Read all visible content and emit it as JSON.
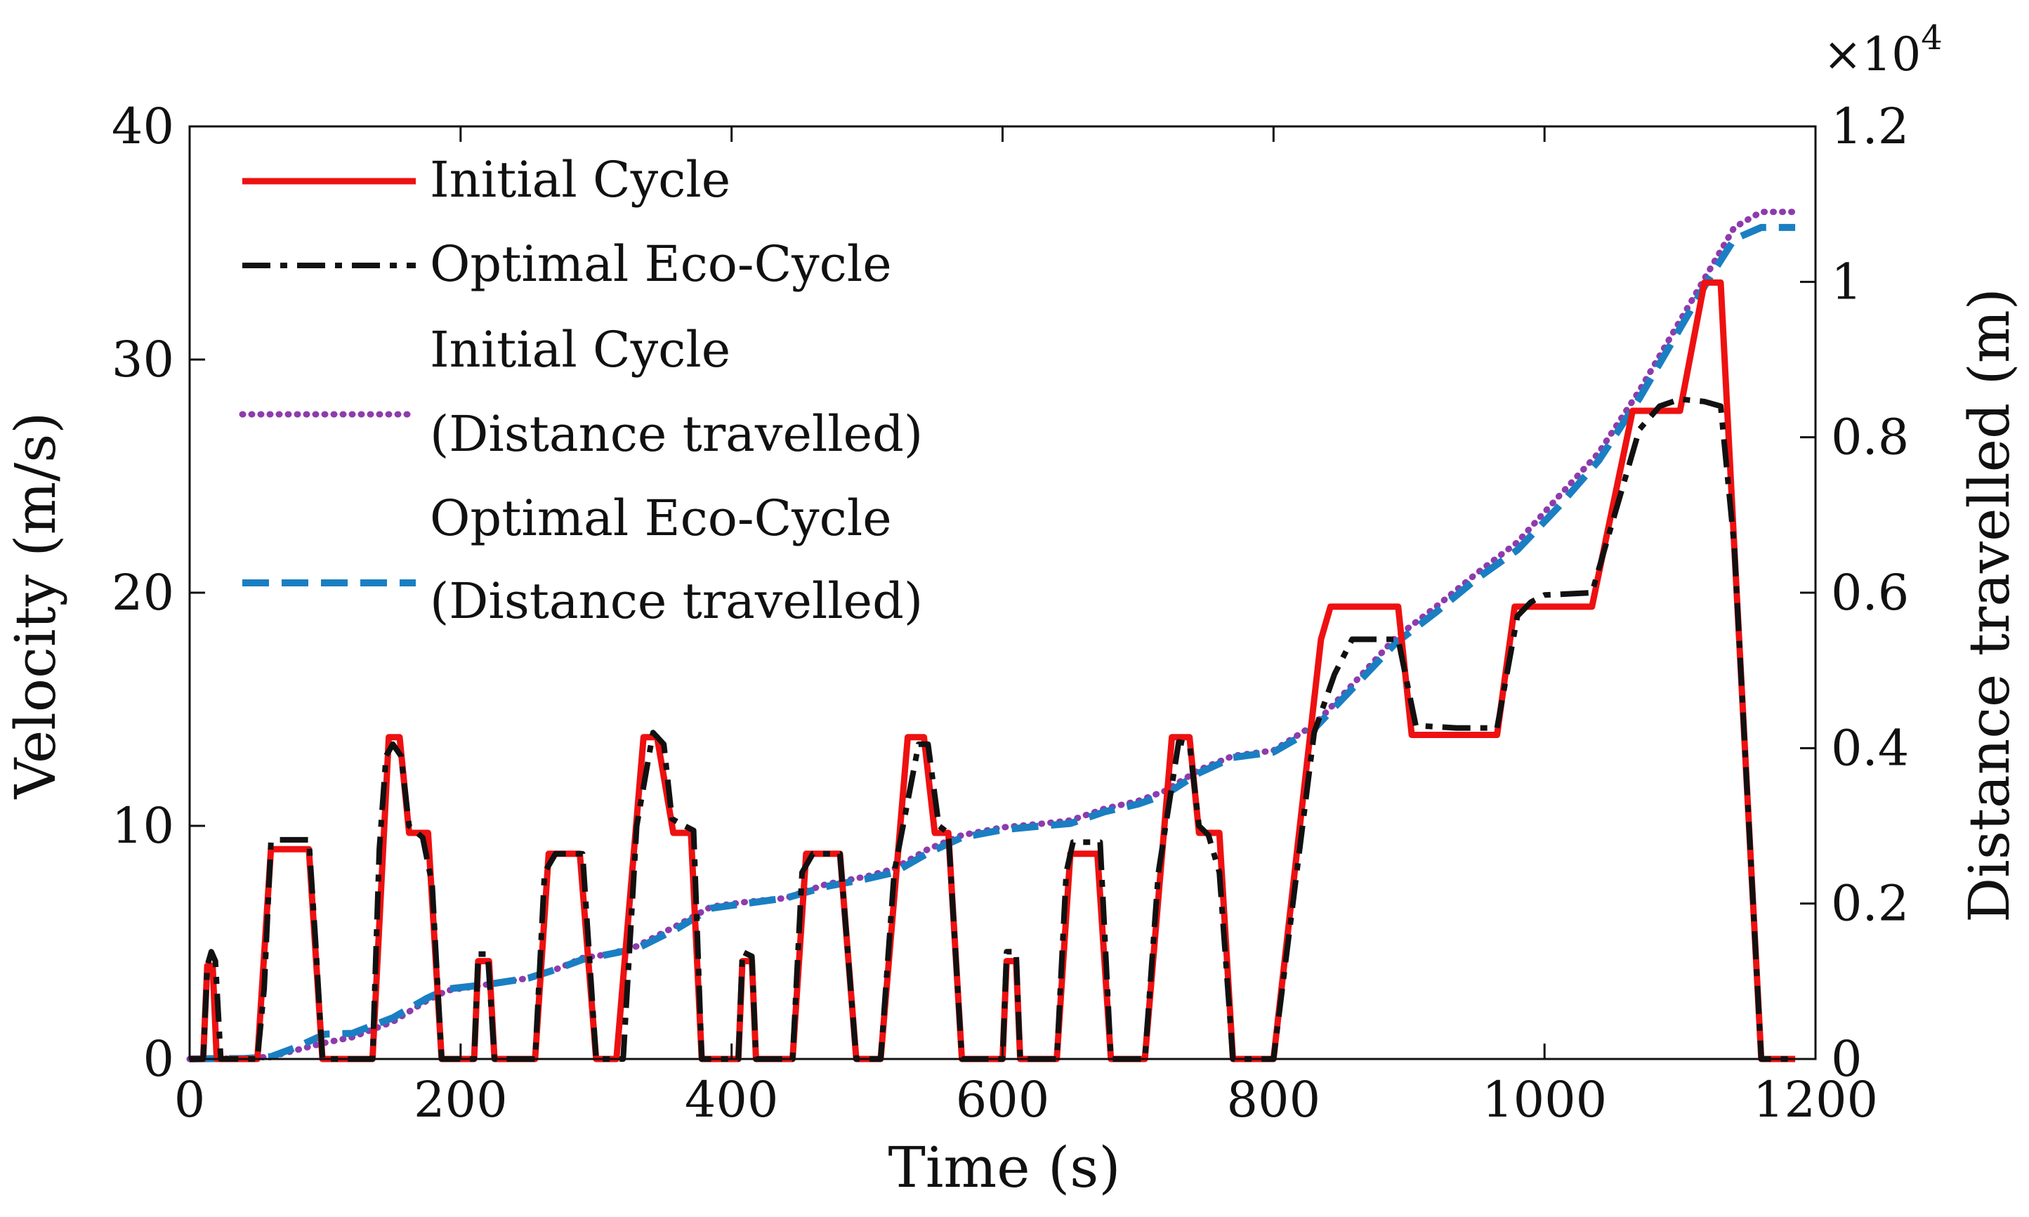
{
  "chart_data": {
    "type": "line",
    "xlabel": "Time (s)",
    "ylabel_left": "Velocity (m/s)",
    "ylabel_right": "Distance travelled (m)",
    "right_axis_multiplier": "×10^4",
    "xlim": [
      0,
      1200
    ],
    "ylim_left": [
      0,
      40
    ],
    "ylim_right": [
      0,
      1.2
    ],
    "x_ticks": [
      "0",
      "200",
      "400",
      "600",
      "800",
      "1000",
      "1200"
    ],
    "y_ticks_left": [
      "0",
      "10",
      "20",
      "30",
      "40"
    ],
    "y_ticks_right": [
      "0",
      "0.2",
      "0.4",
      "0.6",
      "0.8",
      "1",
      "1.2"
    ],
    "grid": false,
    "legend_position": "top-left",
    "legend": [
      {
        "lines": [
          "Initial Cycle"
        ],
        "series": "initial_velocity"
      },
      {
        "lines": [
          "Optimal Eco-Cycle"
        ],
        "series": "optimal_velocity"
      },
      {
        "lines": [
          "Initial Cycle",
          "(Distance travelled)"
        ],
        "series": "initial_distance"
      },
      {
        "lines": [
          "Optimal Eco-Cycle",
          "(Distance travelled)"
        ],
        "series": "optimal_distance"
      }
    ],
    "series": [
      {
        "id": "initial_velocity",
        "axis": "left",
        "color": "#ee1111",
        "style": "solid",
        "points": [
          [
            0,
            0
          ],
          [
            10,
            0
          ],
          [
            13,
            4
          ],
          [
            17,
            4
          ],
          [
            20,
            0
          ],
          [
            30,
            0
          ],
          [
            50,
            0
          ],
          [
            60,
            9
          ],
          [
            88,
            9
          ],
          [
            98,
            0
          ],
          [
            120,
            0
          ],
          [
            135,
            0
          ],
          [
            147,
            13.8
          ],
          [
            155,
            13.8
          ],
          [
            162,
            9.7
          ],
          [
            176,
            9.7
          ],
          [
            186,
            0
          ],
          [
            196,
            0
          ],
          [
            210,
            0
          ],
          [
            213,
            4.2
          ],
          [
            221,
            4.2
          ],
          [
            225,
            0
          ],
          [
            245,
            0
          ],
          [
            255,
            0
          ],
          [
            265,
            8.8
          ],
          [
            288,
            8.8
          ],
          [
            300,
            0
          ],
          [
            310,
            0
          ],
          [
            315,
            0
          ],
          [
            335,
            13.8
          ],
          [
            345,
            13.8
          ],
          [
            357,
            9.7
          ],
          [
            370,
            9.7
          ],
          [
            378,
            0
          ],
          [
            390,
            0
          ],
          [
            405,
            0
          ],
          [
            408,
            4.2
          ],
          [
            415,
            4.2
          ],
          [
            418,
            0
          ],
          [
            430,
            0
          ],
          [
            445,
            0
          ],
          [
            455,
            8.8
          ],
          [
            480,
            8.8
          ],
          [
            492,
            0
          ],
          [
            505,
            0
          ],
          [
            510,
            0
          ],
          [
            530,
            13.8
          ],
          [
            542,
            13.8
          ],
          [
            550,
            9.7
          ],
          [
            560,
            9.7
          ],
          [
            570,
            0
          ],
          [
            585,
            0
          ],
          [
            600,
            0
          ],
          [
            603,
            4.2
          ],
          [
            610,
            4.2
          ],
          [
            613,
            0
          ],
          [
            625,
            0
          ],
          [
            640,
            0
          ],
          [
            650,
            8.8
          ],
          [
            670,
            8.8
          ],
          [
            680,
            0
          ],
          [
            695,
            0
          ],
          [
            705,
            0
          ],
          [
            725,
            13.8
          ],
          [
            738,
            13.8
          ],
          [
            745,
            9.7
          ],
          [
            760,
            9.7
          ],
          [
            770,
            0
          ],
          [
            780,
            0
          ],
          [
            800,
            0
          ],
          [
            835,
            18
          ],
          [
            842,
            19.4
          ],
          [
            892,
            19.4
          ],
          [
            902,
            13.9
          ],
          [
            965,
            13.9
          ],
          [
            978,
            19.4
          ],
          [
            1035,
            19.4
          ],
          [
            1065,
            27.8
          ],
          [
            1100,
            27.8
          ],
          [
            1118,
            33.3
          ],
          [
            1130,
            33.3
          ],
          [
            1140,
            22
          ],
          [
            1160,
            0
          ],
          [
            1185,
            0
          ]
        ]
      },
      {
        "id": "optimal_velocity",
        "axis": "left",
        "color": "#111111",
        "style": "dashdot",
        "points": [
          [
            0,
            0
          ],
          [
            10,
            0
          ],
          [
            13,
            4
          ],
          [
            16,
            4.6
          ],
          [
            19,
            4.2
          ],
          [
            23,
            0
          ],
          [
            30,
            0
          ],
          [
            50,
            0
          ],
          [
            55,
            3
          ],
          [
            60,
            9.3
          ],
          [
            65,
            9.4
          ],
          [
            88,
            9.4
          ],
          [
            93,
            5
          ],
          [
            98,
            0
          ],
          [
            120,
            0
          ],
          [
            135,
            0
          ],
          [
            140,
            9
          ],
          [
            145,
            13
          ],
          [
            150,
            13.5
          ],
          [
            156,
            13
          ],
          [
            162,
            10
          ],
          [
            172,
            9.5
          ],
          [
            179,
            7.5
          ],
          [
            186,
            0
          ],
          [
            196,
            0
          ],
          [
            210,
            0
          ],
          [
            213,
            4.5
          ],
          [
            220,
            4.5
          ],
          [
            225,
            0
          ],
          [
            245,
            0
          ],
          [
            255,
            0
          ],
          [
            262,
            8
          ],
          [
            270,
            8.8
          ],
          [
            290,
            8.8
          ],
          [
            300,
            0
          ],
          [
            315,
            0
          ],
          [
            320,
            0
          ],
          [
            330,
            10
          ],
          [
            342,
            14
          ],
          [
            350,
            13.5
          ],
          [
            356,
            10.3
          ],
          [
            362,
            10.1
          ],
          [
            372,
            9.8
          ],
          [
            378,
            0
          ],
          [
            390,
            0
          ],
          [
            405,
            0
          ],
          [
            408,
            4.6
          ],
          [
            415,
            4.4
          ],
          [
            418,
            0
          ],
          [
            430,
            0
          ],
          [
            445,
            0
          ],
          [
            452,
            8
          ],
          [
            460,
            8.8
          ],
          [
            480,
            8.8
          ],
          [
            492,
            0
          ],
          [
            505,
            0
          ],
          [
            510,
            0
          ],
          [
            520,
            8
          ],
          [
            538,
            13.5
          ],
          [
            545,
            13.5
          ],
          [
            553,
            10
          ],
          [
            560,
            9.7
          ],
          [
            570,
            0
          ],
          [
            585,
            0
          ],
          [
            600,
            0
          ],
          [
            603,
            4.6
          ],
          [
            610,
            4.6
          ],
          [
            613,
            0
          ],
          [
            625,
            0
          ],
          [
            640,
            0
          ],
          [
            647,
            8
          ],
          [
            652,
            9.3
          ],
          [
            672,
            9.3
          ],
          [
            680,
            0
          ],
          [
            695,
            0
          ],
          [
            705,
            0
          ],
          [
            715,
            8
          ],
          [
            730,
            13.6
          ],
          [
            738,
            13.5
          ],
          [
            745,
            10
          ],
          [
            752,
            9.6
          ],
          [
            760,
            8
          ],
          [
            770,
            0
          ],
          [
            780,
            0
          ],
          [
            800,
            0
          ],
          [
            830,
            14
          ],
          [
            845,
            16.5
          ],
          [
            858,
            18
          ],
          [
            892,
            18
          ],
          [
            905,
            14.3
          ],
          [
            935,
            14.2
          ],
          [
            965,
            14.2
          ],
          [
            980,
            19
          ],
          [
            990,
            19.6
          ],
          [
            1000,
            19.9
          ],
          [
            1035,
            20
          ],
          [
            1055,
            24
          ],
          [
            1070,
            27
          ],
          [
            1085,
            28
          ],
          [
            1100,
            28.3
          ],
          [
            1118,
            28.2
          ],
          [
            1130,
            28
          ],
          [
            1140,
            22
          ],
          [
            1160,
            0
          ],
          [
            1185,
            0
          ]
        ]
      },
      {
        "id": "initial_distance",
        "axis": "right",
        "color": "#8e3bad",
        "style": "dotted",
        "points": [
          [
            0,
            0
          ],
          [
            20,
            0.0005
          ],
          [
            40,
            0.0005
          ],
          [
            60,
            0.003
          ],
          [
            80,
            0.012
          ],
          [
            100,
            0.021
          ],
          [
            120,
            0.028
          ],
          [
            150,
            0.048
          ],
          [
            175,
            0.075
          ],
          [
            190,
            0.088
          ],
          [
            220,
            0.096
          ],
          [
            250,
            0.104
          ],
          [
            270,
            0.115
          ],
          [
            290,
            0.13
          ],
          [
            310,
            0.135
          ],
          [
            330,
            0.145
          ],
          [
            360,
            0.172
          ],
          [
            385,
            0.196
          ],
          [
            410,
            0.202
          ],
          [
            440,
            0.207
          ],
          [
            470,
            0.225
          ],
          [
            500,
            0.235
          ],
          [
            520,
            0.245
          ],
          [
            545,
            0.27
          ],
          [
            570,
            0.288
          ],
          [
            600,
            0.298
          ],
          [
            630,
            0.303
          ],
          [
            650,
            0.307
          ],
          [
            675,
            0.322
          ],
          [
            700,
            0.332
          ],
          [
            720,
            0.345
          ],
          [
            745,
            0.372
          ],
          [
            770,
            0.39
          ],
          [
            800,
            0.397
          ],
          [
            830,
            0.43
          ],
          [
            860,
            0.485
          ],
          [
            890,
            0.542
          ],
          [
            920,
            0.582
          ],
          [
            950,
            0.625
          ],
          [
            980,
            0.665
          ],
          [
            1010,
            0.723
          ],
          [
            1040,
            0.78
          ],
          [
            1070,
            0.86
          ],
          [
            1100,
            0.95
          ],
          [
            1120,
            1.01
          ],
          [
            1140,
            1.07
          ],
          [
            1160,
            1.09
          ],
          [
            1185,
            1.09
          ]
        ]
      },
      {
        "id": "optimal_distance",
        "axis": "right",
        "color": "#1a7fc2",
        "style": "dashed",
        "points": [
          [
            0,
            0
          ],
          [
            20,
            0.0005
          ],
          [
            40,
            0.0005
          ],
          [
            60,
            0.003
          ],
          [
            80,
            0.016
          ],
          [
            100,
            0.032
          ],
          [
            120,
            0.033
          ],
          [
            150,
            0.053
          ],
          [
            175,
            0.078
          ],
          [
            190,
            0.09
          ],
          [
            220,
            0.096
          ],
          [
            250,
            0.104
          ],
          [
            270,
            0.115
          ],
          [
            290,
            0.128
          ],
          [
            310,
            0.135
          ],
          [
            330,
            0.142
          ],
          [
            360,
            0.168
          ],
          [
            385,
            0.194
          ],
          [
            410,
            0.2
          ],
          [
            440,
            0.207
          ],
          [
            470,
            0.222
          ],
          [
            500,
            0.232
          ],
          [
            520,
            0.24
          ],
          [
            545,
            0.265
          ],
          [
            570,
            0.285
          ],
          [
            600,
            0.295
          ],
          [
            630,
            0.3
          ],
          [
            650,
            0.303
          ],
          [
            675,
            0.318
          ],
          [
            700,
            0.328
          ],
          [
            720,
            0.34
          ],
          [
            745,
            0.368
          ],
          [
            770,
            0.388
          ],
          [
            800,
            0.395
          ],
          [
            830,
            0.425
          ],
          [
            860,
            0.48
          ],
          [
            890,
            0.535
          ],
          [
            920,
            0.575
          ],
          [
            950,
            0.618
          ],
          [
            980,
            0.655
          ],
          [
            1010,
            0.71
          ],
          [
            1040,
            0.77
          ],
          [
            1070,
            0.85
          ],
          [
            1100,
            0.94
          ],
          [
            1120,
            1.0
          ],
          [
            1140,
            1.055
          ],
          [
            1160,
            1.07
          ],
          [
            1185,
            1.07
          ]
        ]
      }
    ]
  }
}
